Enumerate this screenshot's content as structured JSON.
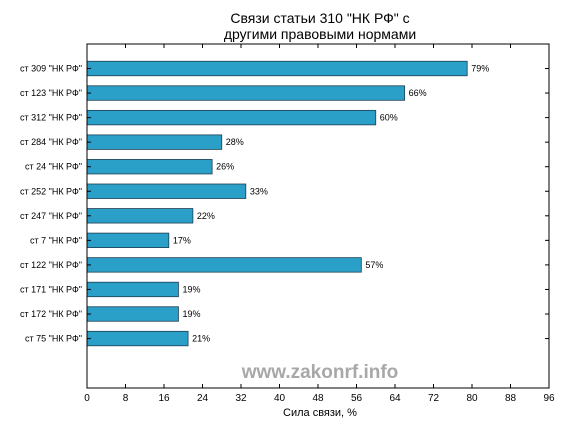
{
  "chart_data": {
    "type": "bar",
    "orientation": "horizontal",
    "title_lines": [
      "Связи статьи 310 \"НК РФ\" с",
      "другими правовыми нормами"
    ],
    "xlabel": "Сила связи, %",
    "ylabel": "",
    "xlim": [
      0,
      96
    ],
    "x_ticks": [
      0,
      8,
      16,
      24,
      32,
      40,
      48,
      56,
      64,
      72,
      80,
      88,
      96
    ],
    "grid": false,
    "bar_color": "#2a9fc7",
    "categories": [
      "ст 309 \"НК РФ\"",
      "ст 123 \"НК РФ\"",
      "ст 312 \"НК РФ\"",
      "ст 284 \"НК РФ\"",
      "ст 24 \"НК РФ\"",
      "ст 252 \"НК РФ\"",
      "ст 247 \"НК РФ\"",
      "ст 7 \"НК РФ\"",
      "ст 122 \"НК РФ\"",
      "ст 171 \"НК РФ\"",
      "ст 172 \"НК РФ\"",
      "ст 75 \"НК РФ\""
    ],
    "values": [
      79,
      66,
      60,
      28,
      26,
      33,
      22,
      17,
      57,
      19,
      19,
      21
    ],
    "value_labels": [
      "79%",
      "66%",
      "60%",
      "28%",
      "26%",
      "33%",
      "22%",
      "17%",
      "57%",
      "19%",
      "19%",
      "21%"
    ]
  },
  "watermark": "www.zakonrf.info"
}
